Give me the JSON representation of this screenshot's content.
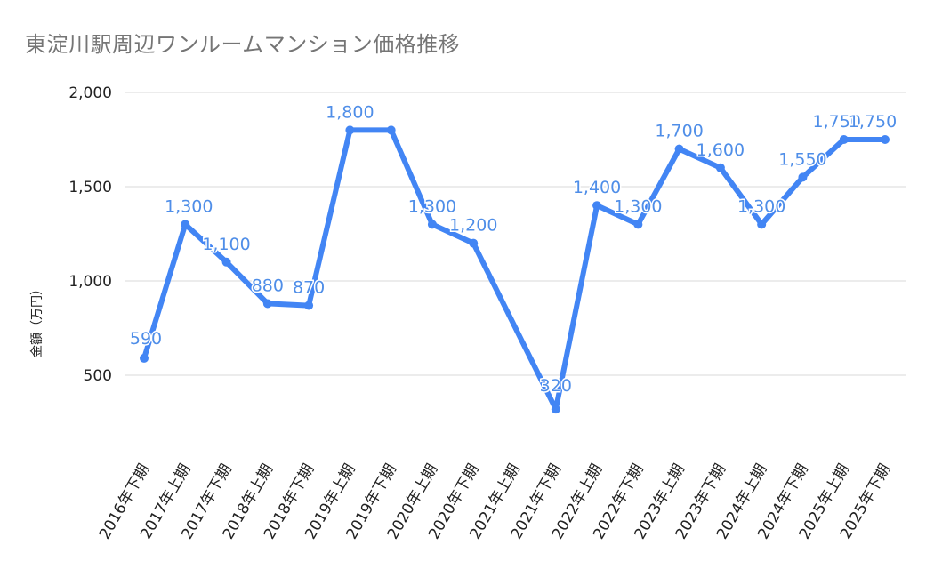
{
  "chart_data": {
    "type": "line",
    "title": "東淀川駅周辺ワンルームマンション価格推移",
    "xlabel": "",
    "ylabel": "金額（万円）",
    "categories": [
      "2016年下期",
      "2017年上期",
      "2017年下期",
      "2018年上期",
      "2018年下期",
      "2019年上期",
      "2019年下期",
      "2020年上期",
      "2020年下期",
      "2021年上期",
      "2021年下期",
      "2022年上期",
      "2022年下期",
      "2023年上期",
      "2023年下期",
      "2024年上期",
      "2024年下期",
      "2025年上期",
      "2025年下期"
    ],
    "series": [
      {
        "name": "",
        "color": "#4285f4",
        "values": [
          590,
          1300,
          1100,
          880,
          870,
          1800,
          1800,
          1300,
          1200,
          null,
          320,
          1400,
          1300,
          1700,
          1600,
          1300,
          1550,
          1750,
          1750
        ],
        "labels": [
          "590",
          "1,300",
          "1,100",
          "880",
          "870",
          "1,800",
          "",
          "1,300",
          "1,200",
          "",
          "320",
          "1,400",
          "1,300",
          "1,700",
          "1,600",
          "1,300",
          "1,550",
          "1,750",
          "1,750"
        ]
      }
    ],
    "y_ticks": [
      500,
      1000,
      1500,
      2000
    ],
    "y_tick_labels": [
      "500",
      "1,000",
      "1,500",
      "2,000"
    ],
    "ylim": [
      300,
      2000
    ],
    "grid": true,
    "legend": "none",
    "colors": {
      "line": "#4285f4",
      "data_label": "#4f8ee8",
      "gridline": "#d9d9d9",
      "title": "#757575"
    }
  }
}
